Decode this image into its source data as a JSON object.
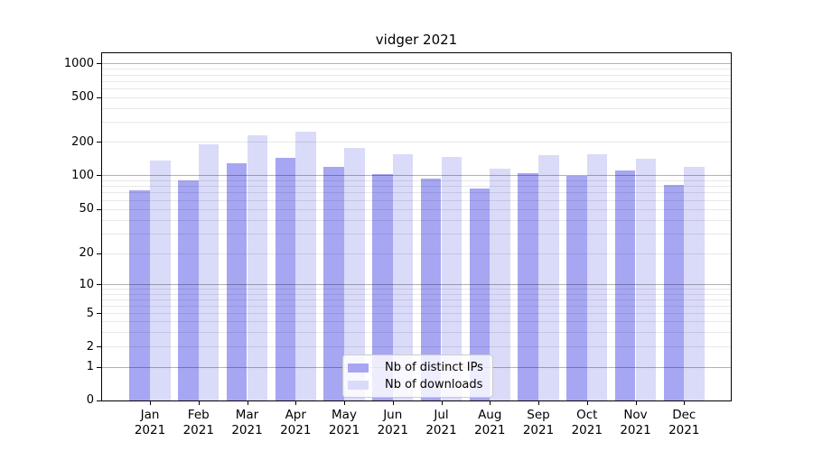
{
  "chart_data": {
    "type": "bar",
    "title": "vidger 2021",
    "categories": [
      "Jan",
      "Feb",
      "Mar",
      "Apr",
      "May",
      "Jun",
      "Jul",
      "Aug",
      "Sep",
      "Oct",
      "Nov",
      "Dec"
    ],
    "year": "2021",
    "series": [
      {
        "name": "Nb of distinct IPs",
        "color": "#a6a6f2",
        "values": [
          74,
          90,
          130,
          146,
          121,
          104,
          94,
          76,
          106,
          100,
          111,
          82
        ]
      },
      {
        "name": "Nb of downloads",
        "color": "#dadaf9",
        "values": [
          137,
          193,
          232,
          250,
          178,
          155,
          147,
          115,
          152,
          157,
          141,
          121
        ]
      }
    ],
    "y_axis": {
      "scale": "log-like with 0-1-2-5 ticks",
      "tick_labels": [
        "0",
        "1",
        "2",
        "5",
        "10",
        "20",
        "50",
        "100",
        "200",
        "500",
        "1000"
      ],
      "tick_values": [
        0,
        1,
        2,
        5,
        10,
        20,
        50,
        100,
        200,
        500,
        1000
      ],
      "anchor_fractions": [
        0,
        0.0959,
        0.1542,
        0.25,
        0.3329,
        0.4223,
        0.5505,
        0.6477,
        0.7435,
        0.8718,
        0.9689
      ],
      "major_grid_values": [
        1,
        10,
        100,
        1000
      ],
      "minor_grid_decades": [
        1,
        10,
        100
      ],
      "ylim": [
        0,
        1150
      ]
    },
    "grid": "both",
    "legend": {
      "position": "lower-center"
    },
    "colors": {
      "grid_major": "rgba(0,0,0,0.30)",
      "grid_minor": "rgba(0,0,0,0.09)",
      "spine": "#000000",
      "background": "#ffffff"
    },
    "layout": {
      "plot": {
        "inner_width": 696,
        "inner_height": 385
      },
      "first_center": 53,
      "group_spacing": 53.75,
      "bar_width": 22.6
    }
  }
}
